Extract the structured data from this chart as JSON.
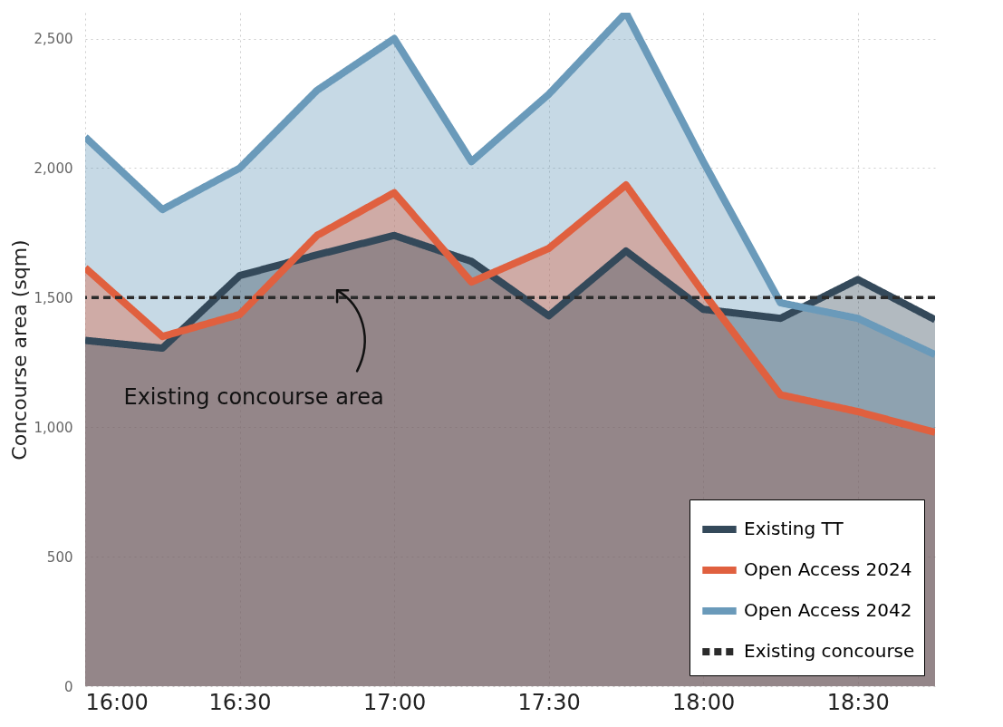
{
  "chart_data": {
    "type": "area",
    "ylabel": "Concourse area (sqm)",
    "x": [
      16,
      16.25,
      16.5,
      16.75,
      17,
      17.25,
      17.5,
      17.75,
      18,
      18.25,
      18.5,
      18.75
    ],
    "series": [
      {
        "name": "Existing TT",
        "color": "#34495a",
        "values": [
          1335,
          1305,
          1585,
          1665,
          1740,
          1640,
          1430,
          1680,
          1455,
          1420,
          1570,
          1415
        ]
      },
      {
        "name": "Open Access 2024",
        "color": "#e0603f",
        "values": [
          1615,
          1350,
          1435,
          1740,
          1905,
          1560,
          1690,
          1935,
          1520,
          1125,
          1060,
          980
        ]
      },
      {
        "name": "Open Access 2042",
        "color": "#6a9aba",
        "values": [
          2120,
          1840,
          2000,
          2300,
          2500,
          2025,
          2285,
          2600,
          2025,
          1480,
          1420,
          1280
        ]
      }
    ],
    "xlim": [
      16,
      18.75
    ],
    "xticks": [
      {
        "value": 16,
        "label": "16:00"
      },
      {
        "value": 16.5,
        "label": "16:30"
      },
      {
        "value": 17,
        "label": "17:00"
      },
      {
        "value": 17.5,
        "label": "17:30"
      },
      {
        "value": 18,
        "label": "18:00"
      },
      {
        "value": 18.5,
        "label": "18:30"
      }
    ],
    "ylim": [
      0,
      2600
    ],
    "yticks": [
      0,
      500,
      {
        "value": 1000,
        "label": "1,000"
      },
      {
        "value": 1500,
        "label": "1,500"
      },
      {
        "value": 2000,
        "label": "2,000"
      },
      {
        "value": 2500,
        "label": "2,500"
      }
    ],
    "ref_lines": [
      {
        "axis": "y",
        "value": 1500,
        "label": "Existing concourse",
        "color": "#2b2b2b",
        "line_style": "dashed"
      }
    ],
    "annotations": [
      "Existing concourse area"
    ],
    "grid": true,
    "legend": "bottom right",
    "line_style": "solid"
  }
}
